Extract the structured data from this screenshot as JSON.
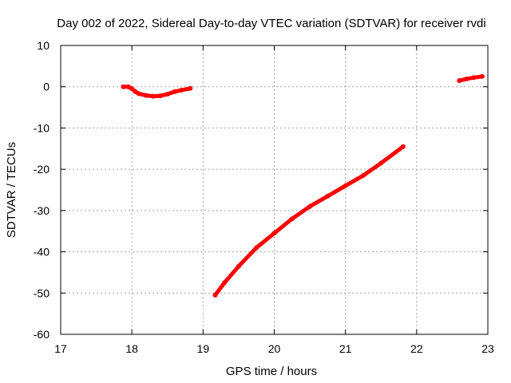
{
  "chart_data": {
    "type": "scatter",
    "title": "Day 002 of 2022, Sidereal Day-to-day VTEC variation (SDTVAR) for receiver rvdi",
    "xlabel": "GPS time / hours",
    "ylabel": "SDTVAR / TECUs",
    "xlim": [
      17,
      23
    ],
    "ylim": [
      -60,
      10
    ],
    "xticks": [
      "17",
      "18",
      "19",
      "20",
      "21",
      "22",
      "23"
    ],
    "yticks": [
      "10",
      "0",
      "-10",
      "-20",
      "-30",
      "-40",
      "-50",
      "-60"
    ],
    "grid": true,
    "series_color": "#ff0000",
    "series": [
      {
        "x": [
          17.88,
          17.95,
          18.0,
          18.05,
          18.1,
          18.2,
          18.3,
          18.4,
          18.5,
          18.6,
          18.7,
          18.82
        ],
        "y": [
          0,
          0,
          -0.5,
          -1.2,
          -1.7,
          -2.1,
          -2.3,
          -2.2,
          -1.8,
          -1.2,
          -0.8,
          -0.4
        ]
      },
      {
        "x": [
          19.17,
          19.3,
          19.5,
          19.75,
          20.0,
          20.25,
          20.5,
          20.75,
          21.0,
          21.25,
          21.5,
          21.81
        ],
        "y": [
          -50.5,
          -47.5,
          -43.5,
          -39.0,
          -35.5,
          -32.0,
          -29.0,
          -26.5,
          -24.0,
          -21.5,
          -18.5,
          -14.5
        ]
      },
      {
        "x": [
          22.6,
          22.7,
          22.8,
          22.92
        ],
        "y": [
          1.5,
          1.9,
          2.2,
          2.5
        ]
      }
    ]
  }
}
